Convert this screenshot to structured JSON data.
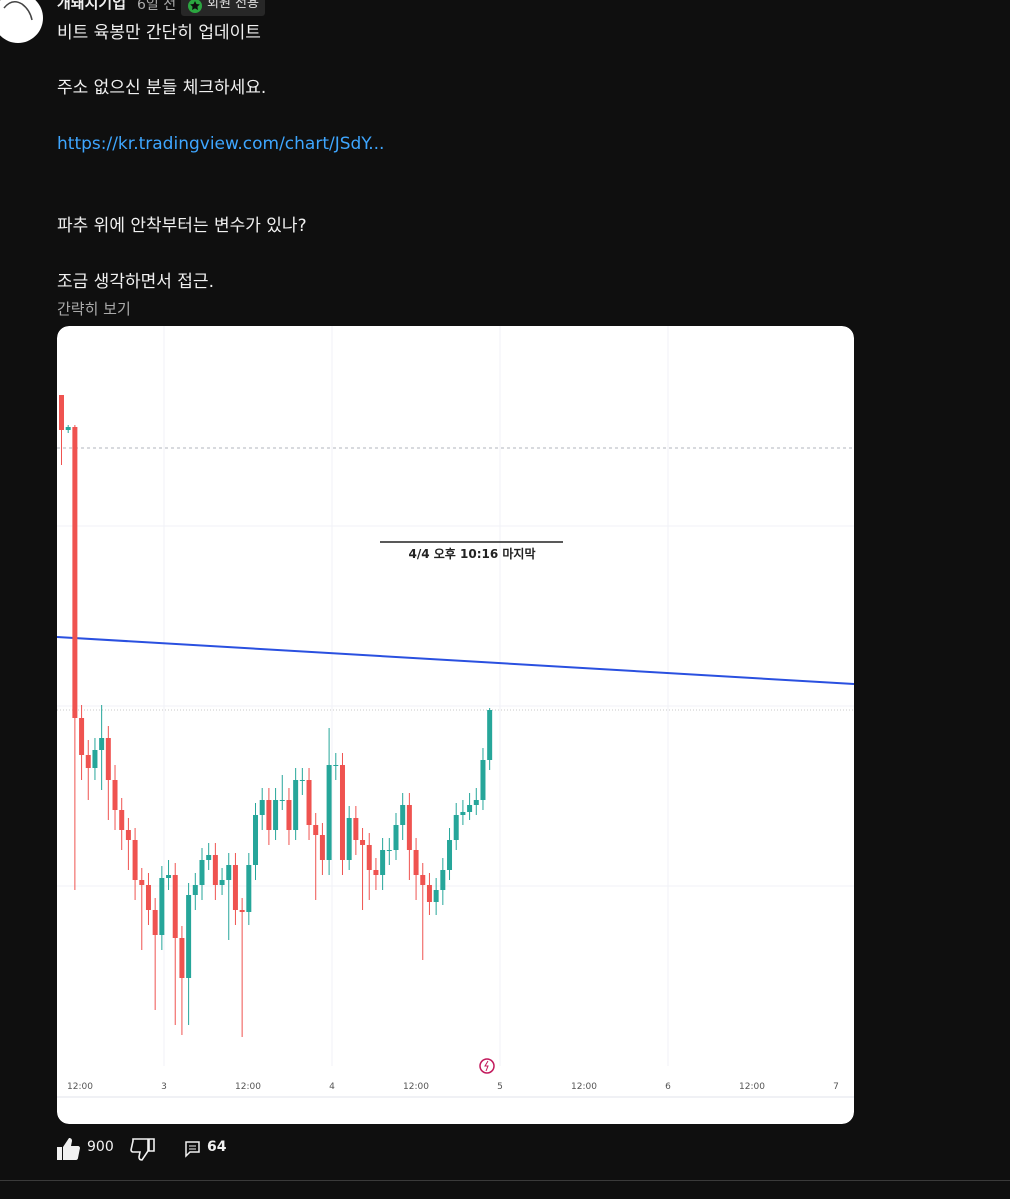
{
  "author": "개돼지기업",
  "time": "6일 전",
  "badge": "회원 전용",
  "post": {
    "lines": [
      "비트 육봉만 간단히 업데이트",
      "주소 없으신 분들 체크하세요."
    ],
    "link": "https://kr.tradingview.com/chart/JSdY...",
    "lines2": [
      "파추 위에 안착부터는 변수가 있나?",
      "조금 생각하면서 접근."
    ],
    "show_less": "간략히 보기"
  },
  "chart": {
    "type": "candlestick",
    "annotation": "4/4 오후 10:16 마지막",
    "up_color": "#26a69a",
    "down_color": "#ef5350",
    "ylim": [
      0,
      774
    ],
    "x_labels": [
      "12:00",
      "3",
      "12:00",
      "4",
      "12:00",
      "5",
      "12:00",
      "6",
      "12:00",
      "7"
    ],
    "trendline": {
      "start": 463,
      "end": 416,
      "color": "#2a50e0"
    },
    "dashed_level": 652,
    "price_line": 390,
    "candles": [
      [
        705,
        705,
        635,
        670
      ],
      [
        670,
        675,
        667,
        673
      ],
      [
        673,
        675,
        210,
        382
      ],
      [
        382,
        395,
        320,
        345
      ],
      [
        345,
        360,
        300,
        332
      ],
      [
        332,
        362,
        320,
        350
      ],
      [
        350,
        395,
        310,
        362
      ],
      [
        362,
        374,
        280,
        320
      ],
      [
        320,
        335,
        270,
        290
      ],
      [
        290,
        302,
        250,
        270
      ],
      [
        270,
        282,
        230,
        260
      ],
      [
        260,
        272,
        200,
        220
      ],
      [
        220,
        232,
        150,
        215
      ],
      [
        215,
        227,
        175,
        190
      ],
      [
        190,
        202,
        90,
        165
      ],
      [
        165,
        234,
        150,
        222
      ],
      [
        222,
        240,
        210,
        225
      ],
      [
        225,
        237,
        75,
        162
      ],
      [
        162,
        174,
        65,
        122
      ],
      [
        122,
        217,
        75,
        205
      ],
      [
        205,
        227,
        190,
        215
      ],
      [
        215,
        252,
        200,
        240
      ],
      [
        240,
        257,
        230,
        245
      ],
      [
        245,
        257,
        200,
        215
      ],
      [
        215,
        232,
        205,
        220
      ],
      [
        220,
        247,
        160,
        235
      ],
      [
        235,
        247,
        175,
        190
      ],
      [
        190,
        202,
        63,
        188
      ],
      [
        188,
        247,
        175,
        235
      ],
      [
        235,
        297,
        220,
        285
      ],
      [
        285,
        312,
        270,
        300
      ],
      [
        300,
        312,
        255,
        270
      ],
      [
        270,
        312,
        260,
        300
      ],
      [
        300,
        325,
        290,
        300
      ],
      [
        300,
        312,
        255,
        270
      ],
      [
        270,
        332,
        260,
        320
      ],
      [
        320,
        332,
        305,
        320
      ],
      [
        320,
        332,
        260,
        275
      ],
      [
        275,
        287,
        200,
        265
      ],
      [
        265,
        277,
        225,
        240
      ],
      [
        240,
        372,
        225,
        335
      ],
      [
        335,
        347,
        320,
        335
      ],
      [
        335,
        347,
        225,
        240
      ],
      [
        240,
        294,
        230,
        282
      ],
      [
        282,
        294,
        245,
        260
      ],
      [
        260,
        272,
        190,
        255
      ],
      [
        255,
        267,
        200,
        230
      ],
      [
        230,
        242,
        210,
        225
      ],
      [
        225,
        262,
        210,
        250
      ],
      [
        250,
        262,
        235,
        250
      ],
      [
        250,
        287,
        240,
        275
      ],
      [
        275,
        307,
        260,
        295
      ],
      [
        295,
        307,
        220,
        250
      ],
      [
        250,
        262,
        200,
        225
      ],
      [
        225,
        237,
        140,
        215
      ],
      [
        215,
        227,
        185,
        198
      ],
      [
        198,
        222,
        185,
        210
      ],
      [
        210,
        242,
        195,
        230
      ],
      [
        230,
        272,
        220,
        260
      ],
      [
        260,
        297,
        250,
        285
      ],
      [
        285,
        300,
        275,
        288
      ],
      [
        288,
        307,
        280,
        295
      ],
      [
        295,
        312,
        285,
        300
      ],
      [
        300,
        352,
        290,
        340
      ],
      [
        340,
        392,
        330,
        390
      ]
    ]
  },
  "likes": 900,
  "comments": 64
}
